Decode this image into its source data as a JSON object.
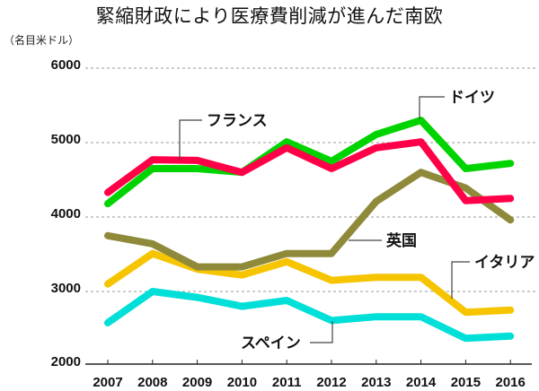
{
  "chart_data": {
    "type": "line",
    "title": "緊縮財政により医療費削減が進んだ南欧",
    "ylabel": "（名目米ドル）",
    "xlabel": "",
    "x": [
      "2007",
      "2008",
      "2009",
      "2010",
      "2011",
      "2012",
      "2013",
      "2014",
      "2015",
      "2016"
    ],
    "ylim": [
      2000,
      6000
    ],
    "yticks": [
      "2000",
      "3000",
      "4000",
      "5000",
      "6000"
    ],
    "grid": true,
    "series": [
      {
        "name": "スペイン",
        "color": "#00dfd8",
        "values": [
          2580,
          3000,
          2920,
          2800,
          2880,
          2610,
          2660,
          2660,
          2370,
          2400
        ]
      },
      {
        "name": "イタリア",
        "color": "#f7c400",
        "values": [
          3100,
          3510,
          3300,
          3220,
          3400,
          3150,
          3190,
          3190,
          2720,
          2750
        ]
      },
      {
        "name": "英国",
        "color": "#8f8a3a",
        "values": [
          3750,
          3640,
          3330,
          3330,
          3510,
          3510,
          4210,
          4600,
          4390,
          3960
        ]
      },
      {
        "name": "ドイツ",
        "color": "#00d400",
        "values": [
          4180,
          4650,
          4650,
          4600,
          5010,
          4750,
          5110,
          5300,
          4650,
          4720
        ]
      },
      {
        "name": "フランス",
        "color": "#ff0048",
        "values": [
          4330,
          4770,
          4760,
          4600,
          4930,
          4650,
          4930,
          5010,
          4220,
          4250
        ]
      }
    ]
  }
}
